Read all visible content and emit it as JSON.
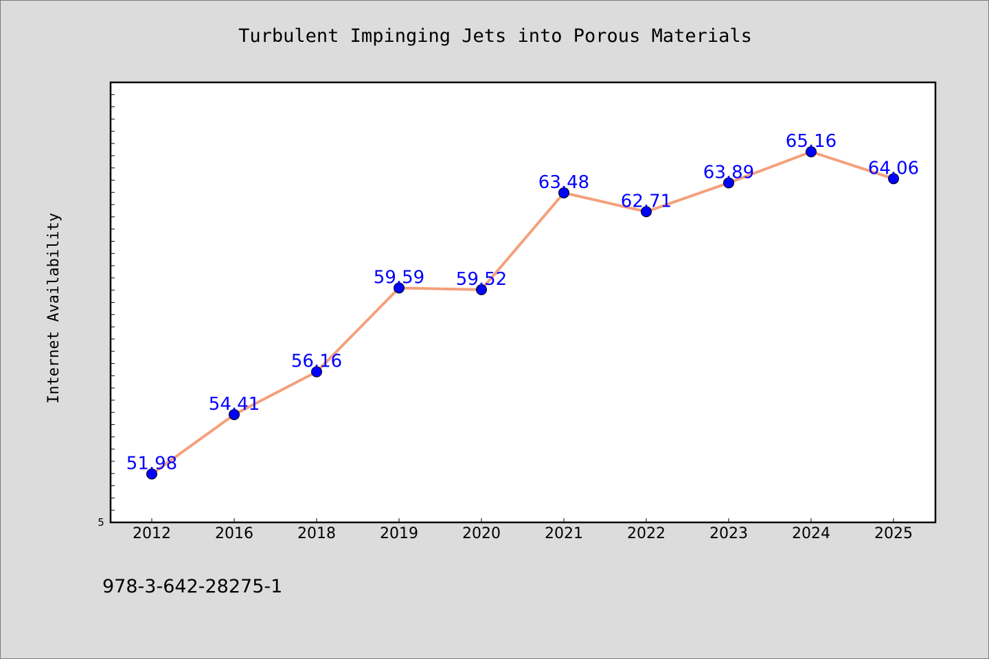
{
  "chart_data": {
    "type": "line",
    "title": "Turbulent Impinging Jets into Porous Materials",
    "xlabel": "",
    "ylabel": "Internet Availability",
    "categories": [
      "2012",
      "2016",
      "2018",
      "2019",
      "2020",
      "2021",
      "2022",
      "2023",
      "2024",
      "2025"
    ],
    "series": [
      {
        "values": [
          51.98,
          54.41,
          56.16,
          59.59,
          59.52,
          63.48,
          62.71,
          63.89,
          65.16,
          64.06
        ],
        "labels": [
          "51.98",
          "54.41",
          "56.16",
          "59.59",
          "59.52",
          "63.48",
          "62.71",
          "63.89",
          "65.16",
          "64.06"
        ]
      }
    ],
    "ylim": [
      50,
      68
    ],
    "y_tick_labels": [
      "5"
    ],
    "grid": false,
    "legend": "none",
    "colors": {
      "line": "#f4a07c",
      "marker": "#0000ff",
      "data_label": "#0000ff",
      "background": "#dcdcdc",
      "plot_background": "#ffffff"
    }
  },
  "footer": {
    "isbn": "978-3-642-28275-1"
  }
}
